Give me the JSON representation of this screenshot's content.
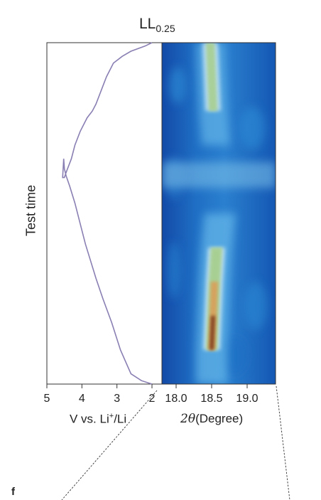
{
  "chart_data": [
    {
      "type": "line",
      "title_main": "LL",
      "title_sub": "0.25",
      "ylabel": "Test time",
      "xlabel_pre": "V vs. Li",
      "xlabel_sup": "+",
      "xlabel_post": "/Li",
      "xlim": [
        5,
        2
      ],
      "x_ticks": [
        5,
        4,
        3,
        2
      ],
      "ylim": [
        0,
        1
      ],
      "line_color": "#8a7fb3",
      "series": [
        {
          "x": [
            2.0,
            2.3,
            2.6,
            2.9,
            3.15,
            3.4,
            3.6,
            3.75,
            3.9,
            4.05,
            4.2,
            4.35,
            4.45,
            4.5,
            4.52,
            4.55,
            4.5,
            4.45,
            4.3,
            4.2,
            4.05,
            3.85,
            3.7,
            3.6,
            3.45,
            3.3,
            3.1,
            2.85,
            2.6,
            2.2,
            2.0
          ],
          "y": [
            0.0,
            0.01,
            0.03,
            0.1,
            0.18,
            0.25,
            0.31,
            0.36,
            0.41,
            0.47,
            0.53,
            0.58,
            0.61,
            0.63,
            0.66,
            0.605,
            0.605,
            0.62,
            0.66,
            0.7,
            0.74,
            0.78,
            0.8,
            0.82,
            0.86,
            0.9,
            0.94,
            0.96,
            0.975,
            0.99,
            1.0
          ]
        }
      ]
    },
    {
      "type": "heatmap",
      "xlabel_symbol": "2θ",
      "xlabel_text": "(Degree)",
      "xlim": [
        17.8,
        19.4
      ],
      "x_ticks": [
        18.0,
        18.5,
        19.0
      ],
      "x_tick_labels": [
        "18.0",
        "18.5",
        "19.0"
      ],
      "ylim": [
        0,
        1
      ],
      "peak_ridge": {
        "y": [
          0.0,
          0.1,
          0.2,
          0.3,
          0.4,
          0.5,
          0.55,
          0.6,
          0.65,
          0.7,
          0.8,
          0.9,
          1.0
        ],
        "two_theta": [
          18.5,
          18.5,
          18.52,
          18.54,
          18.57,
          18.62,
          18.64,
          18.65,
          18.6,
          18.56,
          18.52,
          18.5,
          18.48
        ]
      },
      "colormap": [
        "#0d3c9a",
        "#1f73c8",
        "#63b6e8",
        "#cde8f4",
        "#a8cf8f",
        "#d8a15c",
        "#7c3a1f"
      ]
    }
  ],
  "panel_letter": "f"
}
